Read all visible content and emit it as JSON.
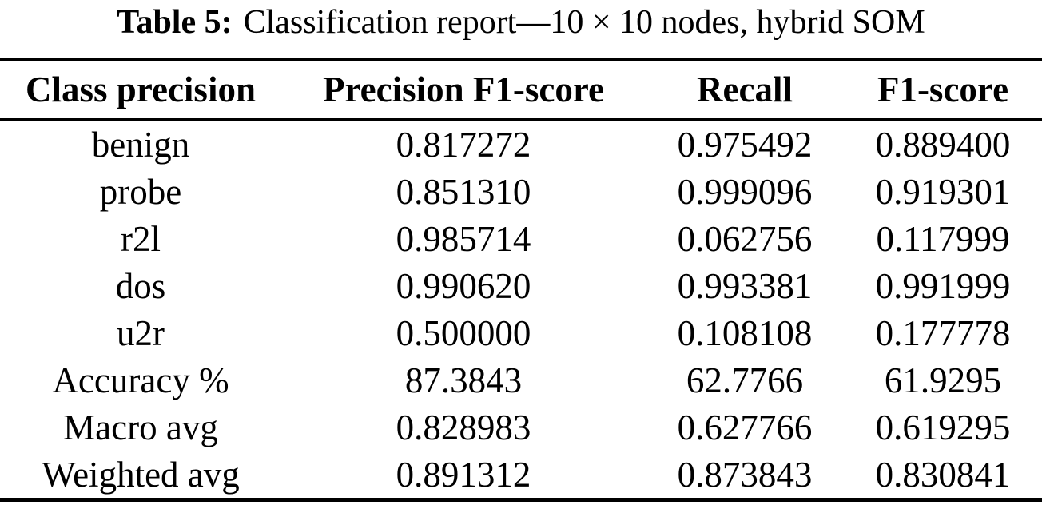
{
  "caption": {
    "label": "Table 5:",
    "text": "Classification report—10 × 10 nodes, hybrid SOM"
  },
  "table": {
    "columns": [
      "Class precision",
      "Precision F1-score",
      "Recall",
      "F1-score"
    ],
    "rows": [
      [
        "benign",
        "0.817272",
        "0.975492",
        "0.889400"
      ],
      [
        "probe",
        "0.851310",
        "0.999096",
        "0.919301"
      ],
      [
        "r2l",
        "0.985714",
        "0.062756",
        "0.117999"
      ],
      [
        "dos",
        "0.990620",
        "0.993381",
        "0.991999"
      ],
      [
        "u2r",
        "0.500000",
        "0.108108",
        "0.177778"
      ],
      [
        "Accuracy %",
        "87.3843",
        "62.7766",
        "61.9295"
      ],
      [
        "Macro avg",
        "0.828983",
        "0.627766",
        "0.619295"
      ],
      [
        "Weighted avg",
        "0.891312",
        "0.873843",
        "0.830841"
      ]
    ]
  },
  "colors": {
    "text": "#000000",
    "background": "#ffffff",
    "rule": "#000000"
  }
}
